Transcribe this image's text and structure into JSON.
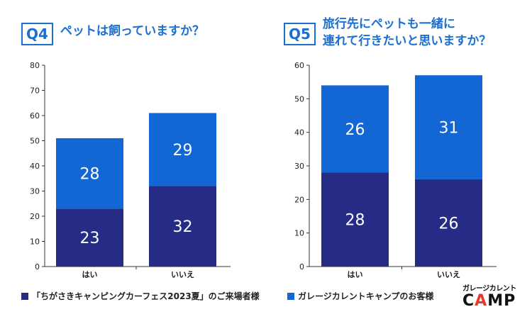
{
  "colors": {
    "dark": "#262b86",
    "light": "#1267d4",
    "accent": "#1b6fd1"
  },
  "q4": {
    "badge": "Q4",
    "title": "ペットは飼っていますか？"
  },
  "q5": {
    "badge": "Q5",
    "title": "旅行先にペットも一緒に\n連れて行きたいと思いますか？"
  },
  "legend": {
    "series_a": "「ちがさきキャンピングカーフェス2023夏」のご来場者様",
    "series_b": "ガレージカレントキャンプのお客様"
  },
  "logo": {
    "top": "ガレージカレント",
    "main": "CAMP"
  },
  "chart_data": [
    {
      "type": "bar",
      "stacked": true,
      "title": "ペットは飼っていますか？",
      "categories": [
        "はい",
        "いいえ"
      ],
      "series": [
        {
          "name": "「ちがさきキャンピングカーフェス2023夏」のご来場者様",
          "values": [
            23,
            32
          ],
          "color": "#262b86"
        },
        {
          "name": "ガレージカレントキャンプのお客様",
          "values": [
            28,
            29
          ],
          "color": "#1267d4"
        }
      ],
      "ylim": [
        0,
        80
      ],
      "yticks": [
        0,
        10,
        20,
        30,
        40,
        50,
        60,
        70,
        80
      ],
      "xlabel": "",
      "ylabel": "",
      "grid": false,
      "legend": "bottom"
    },
    {
      "type": "bar",
      "stacked": true,
      "title": "旅行先にペットも一緒に連れて行きたいと思いますか？",
      "categories": [
        "はい",
        "いいえ"
      ],
      "series": [
        {
          "name": "「ちがさきキャンピングカーフェス2023夏」のご来場者様",
          "values": [
            28,
            26
          ],
          "color": "#262b86"
        },
        {
          "name": "ガレージカレントキャンプのお客様",
          "values": [
            26,
            31
          ],
          "color": "#1267d4"
        }
      ],
      "ylim": [
        0,
        60
      ],
      "yticks": [
        0,
        10,
        20,
        30,
        40,
        50,
        60
      ],
      "xlabel": "",
      "ylabel": "",
      "grid": false,
      "legend": "bottom"
    }
  ]
}
